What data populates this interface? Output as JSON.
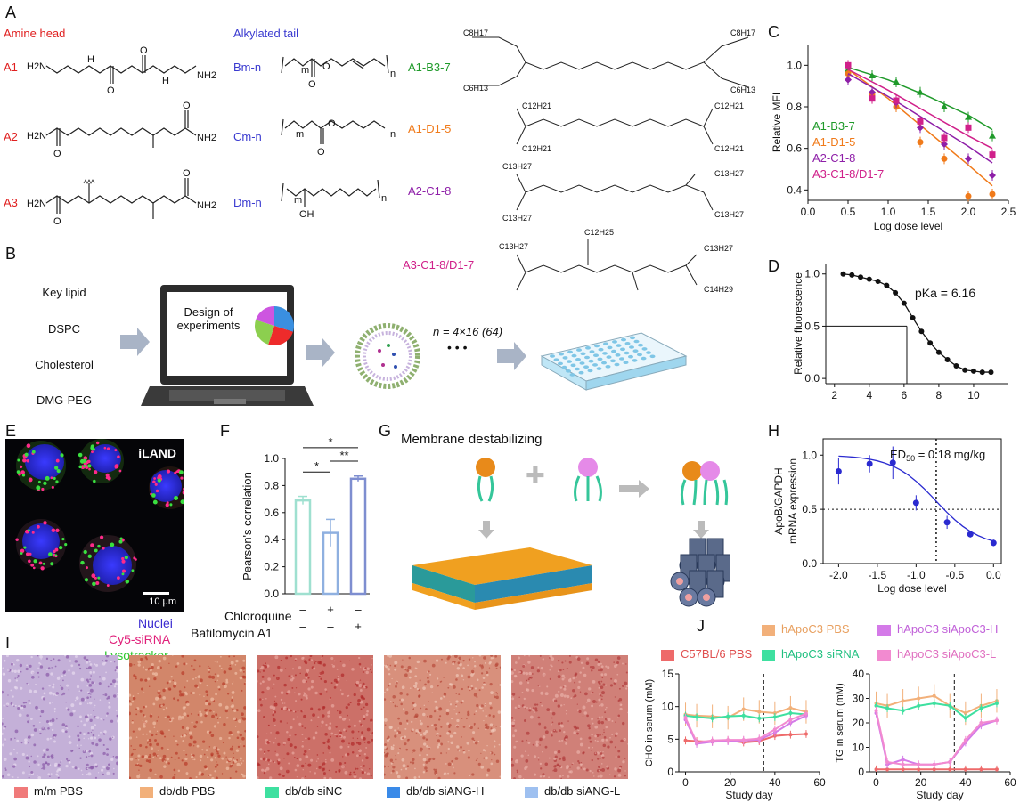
{
  "panels": {
    "a": "A",
    "b": "B",
    "c": "C",
    "d": "D",
    "e": "E",
    "f": "F",
    "g": "G",
    "h": "H",
    "i": "I",
    "j": "J"
  },
  "panel_a": {
    "amine_head": "Amine head",
    "alkylated_tail": "Alkylated tail",
    "amines": [
      "A1",
      "A2",
      "A3"
    ],
    "tails": [
      "Bm-n",
      "Cm-n",
      "Dm-n"
    ],
    "lipids": [
      "A1-B3-7",
      "A1-D1-5",
      "A2-C1-8",
      "A3-C1-8/D1-7"
    ],
    "colors": {
      "amine": "#e02020",
      "tail": "#3a3ad0",
      "l1": "#1f9a2a",
      "l2": "#f07a1a",
      "l3": "#8e1fa8",
      "l4": "#d0208a"
    },
    "struct_labels": {
      "m": "m",
      "n": "n",
      "nh2": "NH2",
      "h2n": "H2N",
      "h": "H",
      "o": "O",
      "oh": "OH",
      "n_atom": "N",
      "c8h17": "C8H17",
      "c6h13": "C6H13",
      "c12h21": "C12H21",
      "c13h27": "C13H27",
      "c12h25": "C12H25",
      "c14h29": "C14H29"
    }
  },
  "panel_b": {
    "pills": [
      {
        "label": "Key lipid",
        "color": "#5fc8f2"
      },
      {
        "label": "DSPC",
        "color": "#d36de8"
      },
      {
        "label": "Cholesterol",
        "color": "#86c84a"
      },
      {
        "label": "DMG-PEG",
        "color": "#ee2b2b"
      }
    ],
    "laptop_text": "Design of experiments",
    "n_label": "n = 4×16 (64)",
    "dots": "• • •",
    "pie_colors": [
      "#3a8fe0",
      "#ee2b2b",
      "#8ccf4f",
      "#cd55e0"
    ]
  },
  "panel_c": {
    "chart_data": {
      "type": "line",
      "xlabel": "Log dose level",
      "ylabel": "Relative MFI",
      "xlim": [
        0.0,
        2.5
      ],
      "ylim": [
        0.35,
        1.1
      ],
      "xticks": [
        "0.0",
        "0.5",
        "1.0",
        "1.5",
        "2.0",
        "2.5"
      ],
      "yticks": [
        "0.4",
        "0.6",
        "0.8",
        "1.0"
      ],
      "series": [
        {
          "name": "A1-B3-7",
          "color": "#1f9a2a",
          "marker": "triangle",
          "x": [
            0.5,
            0.8,
            1.1,
            1.4,
            1.7,
            2.0,
            2.3
          ],
          "y": [
            0.98,
            0.95,
            0.92,
            0.87,
            0.8,
            0.75,
            0.66
          ],
          "fit": [
            [
              0.5,
              0.99
            ],
            [
              1.0,
              0.93
            ],
            [
              1.5,
              0.85
            ],
            [
              2.0,
              0.76
            ],
            [
              2.3,
              0.69
            ]
          ]
        },
        {
          "name": "A1-D1-5",
          "color": "#f07a1a",
          "marker": "circle",
          "x": [
            0.5,
            0.8,
            1.1,
            1.4,
            1.7,
            2.0,
            2.3
          ],
          "y": [
            0.96,
            0.86,
            0.8,
            0.63,
            0.55,
            0.37,
            0.38
          ],
          "fit": [
            [
              0.5,
              0.98
            ],
            [
              1.0,
              0.84
            ],
            [
              1.5,
              0.68
            ],
            [
              2.0,
              0.52
            ],
            [
              2.3,
              0.42
            ]
          ]
        },
        {
          "name": "A2-C1-8",
          "color": "#8e1fa8",
          "marker": "diamond",
          "x": [
            0.5,
            0.8,
            1.1,
            1.4,
            1.7,
            2.0,
            2.3
          ],
          "y": [
            0.93,
            0.87,
            0.82,
            0.7,
            0.62,
            0.55,
            0.47
          ],
          "fit": [
            [
              0.5,
              0.96
            ],
            [
              1.0,
              0.85
            ],
            [
              1.5,
              0.73
            ],
            [
              2.0,
              0.61
            ],
            [
              2.3,
              0.53
            ]
          ]
        },
        {
          "name": "A3-C1-8/D1-7",
          "color": "#d0208a",
          "marker": "square",
          "x": [
            0.5,
            0.8,
            1.1,
            1.4,
            1.7,
            2.0,
            2.3
          ],
          "y": [
            1.0,
            0.84,
            0.83,
            0.73,
            0.65,
            0.7,
            0.57
          ],
          "fit": [
            [
              0.5,
              0.98
            ],
            [
              1.0,
              0.88
            ],
            [
              1.5,
              0.77
            ],
            [
              2.0,
              0.66
            ],
            [
              2.3,
              0.6
            ]
          ]
        }
      ]
    }
  },
  "panel_d": {
    "chart_data": {
      "type": "scatter",
      "xlabel": "",
      "ylabel": "Relative fluorescence",
      "annotation": "pKa = 6.16",
      "xlim": [
        1.5,
        12
      ],
      "ylim": [
        -0.05,
        1.1
      ],
      "xticks": [
        "2",
        "4",
        "6",
        "8",
        "10"
      ],
      "yticks": [
        "0.0",
        "0.5",
        "1.0"
      ],
      "x": [
        2.5,
        3.0,
        3.5,
        4.0,
        4.5,
        5.0,
        5.5,
        6.0,
        6.5,
        7.0,
        7.5,
        8.0,
        8.5,
        9.0,
        9.5,
        10.0,
        10.5,
        11.0
      ],
      "y": [
        1.0,
        0.99,
        0.97,
        0.95,
        0.93,
        0.89,
        0.82,
        0.72,
        0.58,
        0.45,
        0.34,
        0.25,
        0.18,
        0.12,
        0.08,
        0.07,
        0.06,
        0.06
      ],
      "pka": 6.16
    }
  },
  "panel_e": {
    "tag": "iLAND",
    "scale": "10 μm",
    "legend": [
      "Nuclei",
      "Cy5-siRNA",
      "Lysotracker"
    ],
    "legend_colors": [
      "#3a2ad0",
      "#e0207a",
      "#2ec82e"
    ]
  },
  "panel_f": {
    "chart_data": {
      "type": "bar",
      "ylabel": "Pearson's correlation",
      "ylim": [
        0,
        1.0
      ],
      "yticks": [
        "0.0",
        "0.2",
        "0.4",
        "0.6",
        "0.8",
        "1.0"
      ],
      "values": [
        0.69,
        0.45,
        0.85
      ],
      "errors": [
        0.03,
        0.1,
        0.02
      ],
      "colors": [
        "#9fe0d0",
        "#8fb0e0",
        "#7e8ed0"
      ],
      "significance": [
        "*",
        "*",
        "**"
      ],
      "rows": [
        {
          "label": "Chloroquine",
          "values": [
            "–",
            "+",
            "–"
          ]
        },
        {
          "label": "Bafilomycin A1",
          "values": [
            "–",
            "–",
            "+"
          ]
        }
      ]
    }
  },
  "panel_g": {
    "title": "Membrane destabilizing"
  },
  "panel_h": {
    "chart_data": {
      "type": "scatter",
      "xlabel": "Log dose level",
      "ylabel": "ApoB/GAPDH mRNA expression",
      "annotation": "ED50 = 0.18 mg/kg",
      "ed_sub": "50",
      "ed_prefix": "ED",
      "ed_suffix": " = 0.18 mg/kg",
      "xlim": [
        -2.2,
        0.1
      ],
      "ylim": [
        0,
        1.15
      ],
      "xticks": [
        "-2.0",
        "-1.5",
        "-1.0",
        "-0.5",
        "0.0"
      ],
      "yticks": [
        "0.0",
        "0.5",
        "1.0"
      ],
      "x": [
        -2.0,
        -1.6,
        -1.3,
        -1.0,
        -0.6,
        -0.3,
        0.0
      ],
      "y": [
        0.85,
        0.92,
        0.93,
        0.56,
        0.38,
        0.27,
        0.19
      ],
      "errors": [
        0.12,
        0.08,
        0.15,
        0.07,
        0.06,
        0.03,
        0.03
      ],
      "ed50_x": -0.74,
      "color": "#2a2ad0"
    }
  },
  "panel_i": {
    "legend": [
      {
        "label": "m/m PBS",
        "color": "#f07a7a"
      },
      {
        "label": "db/db PBS",
        "color": "#f2b07a"
      },
      {
        "label": "db/db siNC",
        "color": "#3ee0a0"
      },
      {
        "label": "db/db siANG-H",
        "color": "#3a8ae8"
      },
      {
        "label": "db/db siANG-L",
        "color": "#9ec0f0"
      }
    ]
  },
  "panel_j": {
    "legend": [
      {
        "label": "C57BL/6 PBS",
        "color": "#ee6a6a"
      },
      {
        "label": "hApoC3 PBS",
        "color": "#f2b07a"
      },
      {
        "label": "hApoC3 siRNA",
        "color": "#3ee0a0"
      },
      {
        "label": "hApoC3 siApoC3-H",
        "color": "#d47ae8"
      },
      {
        "label": "hApoC3 siApoC3-L",
        "color": "#f28ad0"
      }
    ],
    "chart_data": [
      {
        "type": "line",
        "xlabel": "Study day",
        "ylabel": "CHO in serum (mM)",
        "xlim": [
          -3,
          60
        ],
        "ylim": [
          0,
          15
        ],
        "xticks": [
          "0",
          "20",
          "40",
          "60"
        ],
        "yticks": [
          "0",
          "5",
          "10",
          "15"
        ],
        "vline": 35,
        "x": [
          0,
          5,
          12,
          19,
          26,
          33,
          40,
          47,
          54
        ],
        "series": [
          {
            "name": "C57BL/6 PBS",
            "values": [
              4.8,
              4.7,
              4.6,
              4.8,
              4.5,
              4.7,
              5.5,
              5.7,
              5.8
            ]
          },
          {
            "name": "hApoC3 PBS",
            "values": [
              8.8,
              8.6,
              8.5,
              8.3,
              9.6,
              9.2,
              9.0,
              9.8,
              9.2
            ]
          },
          {
            "name": "hApoC3 siRNA",
            "values": [
              8.6,
              8.4,
              8.2,
              8.5,
              8.6,
              8.2,
              8.4,
              9.0,
              8.8
            ]
          },
          {
            "name": "hApoC3 siApoC3-H",
            "values": [
              8.0,
              4.3,
              4.6,
              4.7,
              4.8,
              4.9,
              6.0,
              7.5,
              8.6
            ]
          },
          {
            "name": "hApoC3 siApoC3-L",
            "values": [
              8.3,
              4.5,
              4.8,
              4.9,
              4.9,
              5.1,
              6.5,
              8.0,
              8.9
            ]
          }
        ]
      },
      {
        "type": "line",
        "xlabel": "Study day",
        "ylabel": "TG in serum (mM)",
        "xlim": [
          -3,
          60
        ],
        "ylim": [
          0,
          40
        ],
        "xticks": [
          "0",
          "20",
          "40",
          "60"
        ],
        "yticks": [
          "0",
          "10",
          "20",
          "30",
          "40"
        ],
        "vline": 35,
        "x": [
          0,
          5,
          12,
          19,
          26,
          33,
          40,
          47,
          54
        ],
        "series": [
          {
            "name": "C57BL/6 PBS",
            "values": [
              1,
              1,
              1,
              1,
              1,
              1,
              1,
              1,
              1
            ]
          },
          {
            "name": "hApoC3 PBS",
            "values": [
              28,
              27,
              29,
              30,
              31,
              27,
              24,
              27,
              29
            ]
          },
          {
            "name": "hApoC3 siRNA",
            "values": [
              27,
              26,
              25,
              27,
              28,
              27,
              22,
              26,
              28
            ]
          },
          {
            "name": "hApoC3 siApoC3-H",
            "values": [
              24,
              3,
              5,
              3,
              3,
              4,
              12,
              19,
              21
            ]
          },
          {
            "name": "hApoC3 siApoC3-L",
            "values": [
              25,
              4,
              3,
              3,
              3,
              4,
              13,
              20,
              21
            ]
          }
        ]
      }
    ]
  }
}
